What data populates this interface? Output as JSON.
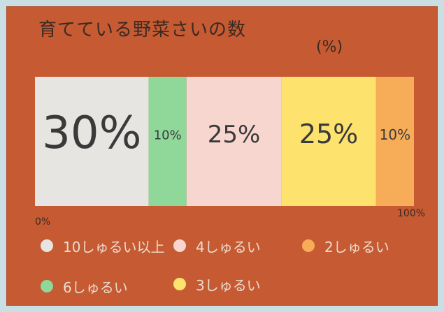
{
  "chart_data": {
    "type": "bar",
    "title": "育てている野菜さいの数",
    "unit": "(%)",
    "x_start_label": "0%",
    "x_end_label": "100%",
    "series": [
      {
        "name": "10しゅるい以上",
        "value": 30,
        "label": "30%",
        "color": "#e6e5e1",
        "text_color": "#3a3a3a",
        "font_size": 64
      },
      {
        "name": "6しゅるい",
        "value": 10,
        "label": "10%",
        "color": "#8fd89a",
        "text_color": "#3a3a3a",
        "font_size": 18
      },
      {
        "name": "4しゅるい",
        "value": 25,
        "label": "25%",
        "color": "#f6d6cf",
        "text_color": "#3a3a3a",
        "font_size": 34
      },
      {
        "name": "3しゅるい",
        "value": 25,
        "label": "25%",
        "color": "#fde36e",
        "text_color": "#3a3a3a",
        "font_size": 38
      },
      {
        "name": "2しゅるい",
        "value": 10,
        "label": "10%",
        "color": "#f7ad57",
        "text_color": "#3a3a3a",
        "font_size": 20
      }
    ]
  },
  "legend": {
    "items": [
      {
        "label": "10しゅるい以上",
        "color": "#e6e5e1"
      },
      {
        "label": "4しゅるい",
        "color": "#f6d6cf"
      },
      {
        "label": "2しゅるい",
        "color": "#f7ad57"
      },
      {
        "label": "6しゅるい",
        "color": "#8fd89a"
      },
      {
        "label": "3しゅるい",
        "color": "#fde36e"
      }
    ]
  }
}
